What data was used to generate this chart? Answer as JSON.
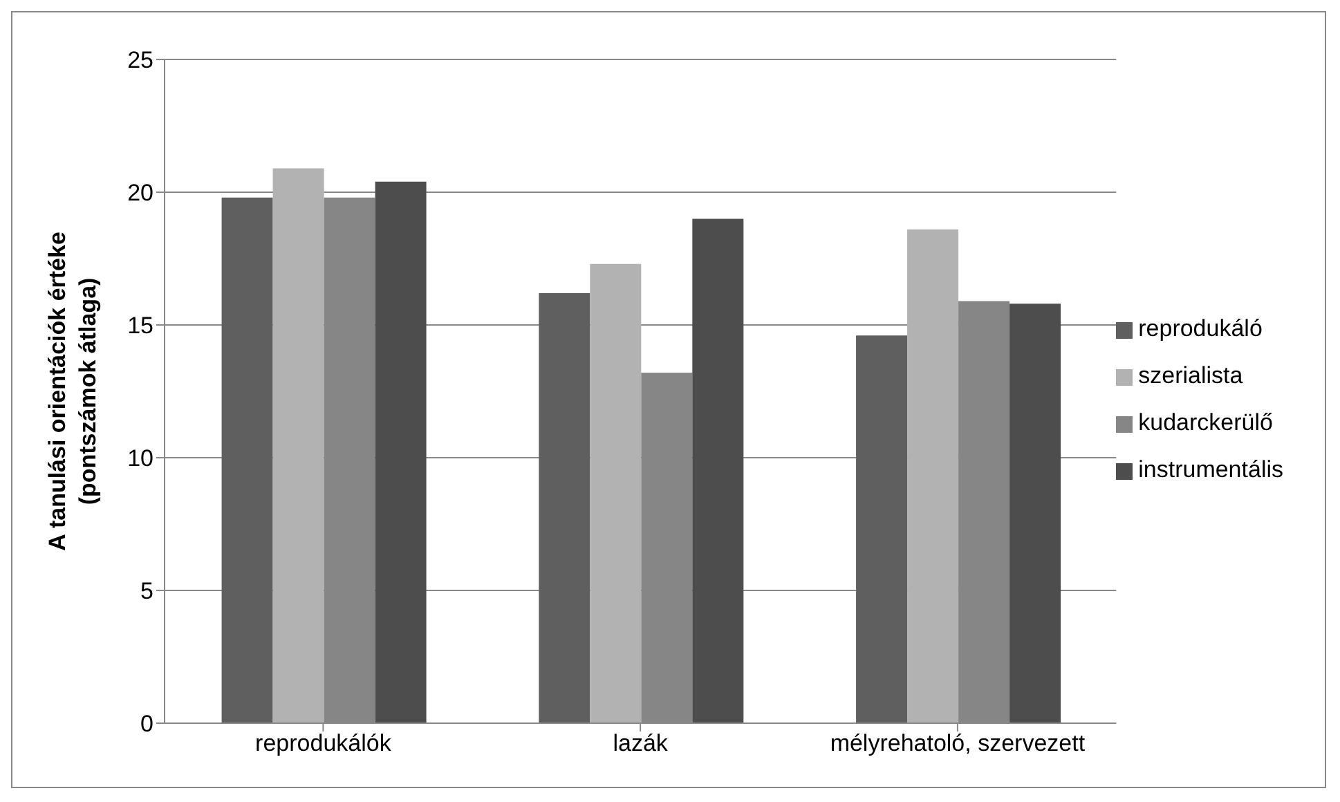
{
  "chart_data": {
    "type": "bar",
    "ylabel": "A tanulási orientációk értéke\n(pontszámok átlaga)",
    "categories": [
      "reprodukálók",
      "lazák",
      "mélyrehatoló, szervezett"
    ],
    "series": [
      {
        "name": "reprodukáló",
        "color": "#5f5f5f",
        "values": [
          19.8,
          16.2,
          14.6
        ]
      },
      {
        "name": "szerialista",
        "color": "#b2b2b2",
        "values": [
          20.9,
          17.3,
          18.6
        ]
      },
      {
        "name": "kudarckerülő",
        "color": "#868686",
        "values": [
          19.8,
          13.2,
          15.9
        ]
      },
      {
        "name": "instrumentális",
        "color": "#4d4d4d",
        "values": [
          20.4,
          19.0,
          15.8
        ]
      }
    ],
    "ylim": [
      0,
      25
    ],
    "yticks": [
      0,
      5,
      10,
      15,
      20,
      25
    ],
    "grid": "y",
    "legend": "right"
  }
}
